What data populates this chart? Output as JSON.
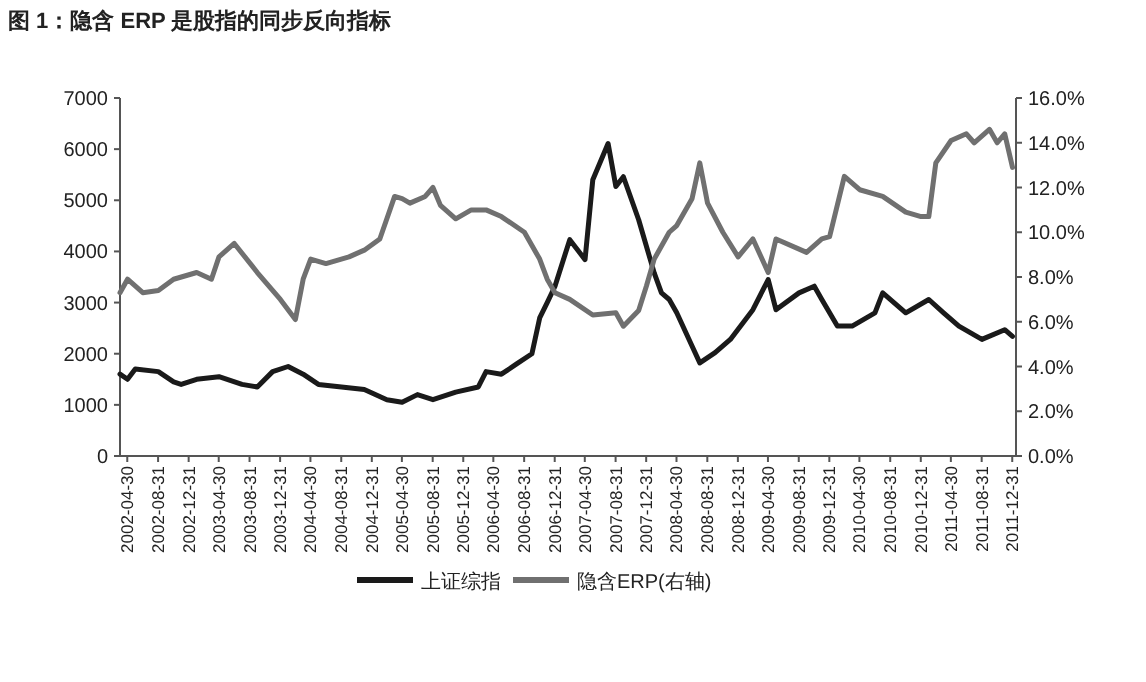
{
  "chart_data": {
    "type": "line",
    "title": "图 1：隐含 ERP 是股指的同步反向指标",
    "series": [
      {
        "name": "上证综指",
        "color": "#1a1a1a",
        "x": [
          "2002-04",
          "2002-05",
          "2002-06",
          "2002-09",
          "2002-11",
          "2002-12",
          "2003-02",
          "2003-05",
          "2003-08",
          "2003-10",
          "2003-12",
          "2004-02",
          "2004-04",
          "2004-06",
          "2004-09",
          "2004-12",
          "2005-03",
          "2005-05",
          "2005-07",
          "2005-09",
          "2005-12",
          "2006-03",
          "2006-04",
          "2006-06",
          "2006-08",
          "2006-10",
          "2006-11",
          "2006-12",
          "2007-01",
          "2007-03",
          "2007-05",
          "2007-06",
          "2007-08",
          "2007-09",
          "2007-10",
          "2007-12",
          "2008-02",
          "2008-03",
          "2008-04",
          "2008-05",
          "2008-07",
          "2008-08",
          "2008-10",
          "2008-12",
          "2009-03",
          "2009-05",
          "2009-06",
          "2009-09",
          "2009-11",
          "2009-12",
          "2010-02",
          "2010-04",
          "2010-07",
          "2010-08",
          "2010-11",
          "2011-02",
          "2011-04",
          "2011-06",
          "2011-09",
          "2011-12",
          "2012-01"
        ],
        "values": [
          1600,
          1500,
          1700,
          1650,
          1450,
          1400,
          1500,
          1550,
          1400,
          1350,
          1650,
          1750,
          1600,
          1400,
          1350,
          1300,
          1100,
          1050,
          1200,
          1100,
          1250,
          1350,
          1650,
          1600,
          1800,
          2000,
          2700,
          3000,
          3320,
          4230,
          3840,
          5400,
          6110,
          5270,
          5460,
          4620,
          3580,
          3190,
          3060,
          2800,
          2150,
          1820,
          2020,
          2280,
          2860,
          3450,
          2860,
          3190,
          3320,
          3060,
          2540,
          2540,
          2800,
          3190,
          2800,
          3060,
          2800,
          2540,
          2280,
          2470,
          2340
        ]
      },
      {
        "name": "隐含ERP(右轴)",
        "color": "#707070",
        "axis": "y2",
        "x": [
          "2002-04",
          "2002-05",
          "2002-07",
          "2002-09",
          "2002-11",
          "2003-02",
          "2003-04",
          "2003-05",
          "2003-07",
          "2003-10",
          "2004-01",
          "2004-03",
          "2004-04",
          "2004-05",
          "2004-07",
          "2004-10",
          "2004-12",
          "2005-02",
          "2005-04",
          "2005-05",
          "2005-06",
          "2005-08",
          "2005-09",
          "2005-10",
          "2005-12",
          "2006-02",
          "2006-04",
          "2006-06",
          "2006-09",
          "2006-11",
          "2006-12",
          "2007-01",
          "2007-03",
          "2007-06",
          "2007-09",
          "2007-10",
          "2007-12",
          "2008-01",
          "2008-02",
          "2008-04",
          "2008-05",
          "2008-07",
          "2008-08",
          "2008-09",
          "2008-11",
          "2009-01",
          "2009-03",
          "2009-05",
          "2009-06",
          "2009-10",
          "2009-12",
          "2010-01",
          "2010-03",
          "2010-05",
          "2010-08",
          "2010-11",
          "2011-01",
          "2011-02",
          "2011-03",
          "2011-05",
          "2011-07",
          "2011-08",
          "2011-10",
          "2011-11",
          "2011-12",
          "2012-01"
        ],
        "values": [
          7.3,
          7.9,
          7.3,
          7.4,
          7.9,
          8.2,
          7.9,
          8.9,
          9.5,
          8.2,
          7.0,
          6.1,
          7.9,
          8.8,
          8.6,
          8.9,
          9.2,
          9.7,
          11.6,
          11.5,
          11.3,
          11.6,
          12.0,
          11.2,
          10.6,
          11.0,
          11.0,
          10.7,
          10.0,
          8.8,
          7.9,
          7.3,
          7.0,
          6.3,
          6.4,
          5.8,
          6.5,
          7.6,
          8.8,
          10.0,
          10.3,
          11.5,
          13.1,
          11.3,
          10.0,
          8.9,
          9.7,
          8.2,
          9.7,
          9.1,
          9.7,
          9.8,
          12.5,
          11.9,
          11.6,
          10.9,
          10.7,
          10.7,
          13.1,
          14.1,
          14.4,
          14.0,
          14.6,
          14.0,
          14.4,
          12.9
        ]
      }
    ],
    "xlim": [
      "2002-04",
      "2012-01-15"
    ],
    "xticks": [
      "2002-04-30",
      "2002-08-31",
      "2002-12-31",
      "2003-04-30",
      "2003-08-31",
      "2003-12-31",
      "2004-04-30",
      "2004-08-31",
      "2004-12-31",
      "2005-04-30",
      "2005-08-31",
      "2005-12-31",
      "2006-04-30",
      "2006-08-31",
      "2006-12-31",
      "2007-04-30",
      "2007-08-31",
      "2007-12-31",
      "2008-04-30",
      "2008-08-31",
      "2008-12-31",
      "2009-04-30",
      "2009-08-31",
      "2009-12-31",
      "2010-04-30",
      "2010-08-31",
      "2010-12-31",
      "2011-04-30",
      "2011-08-31",
      "2011-12-31"
    ],
    "ylim": [
      0,
      7000
    ],
    "yticks": [
      0,
      1000,
      2000,
      3000,
      4000,
      5000,
      6000,
      7000
    ],
    "y2lim": [
      0,
      16
    ],
    "y2ticks": [
      {
        "value": 0,
        "label": "0.0%"
      },
      {
        "value": 2,
        "label": "2.0%"
      },
      {
        "value": 4,
        "label": "4.0%"
      },
      {
        "value": 6,
        "label": "6.0%"
      },
      {
        "value": 8,
        "label": "8.0%"
      },
      {
        "value": 10,
        "label": "10.0%"
      },
      {
        "value": 12,
        "label": "12.0%"
      },
      {
        "value": 14,
        "label": "14.0%"
      },
      {
        "value": 16,
        "label": "16.0%"
      }
    ],
    "grid": false,
    "legend": "bottom",
    "marker": "none",
    "line_style": "solid"
  }
}
